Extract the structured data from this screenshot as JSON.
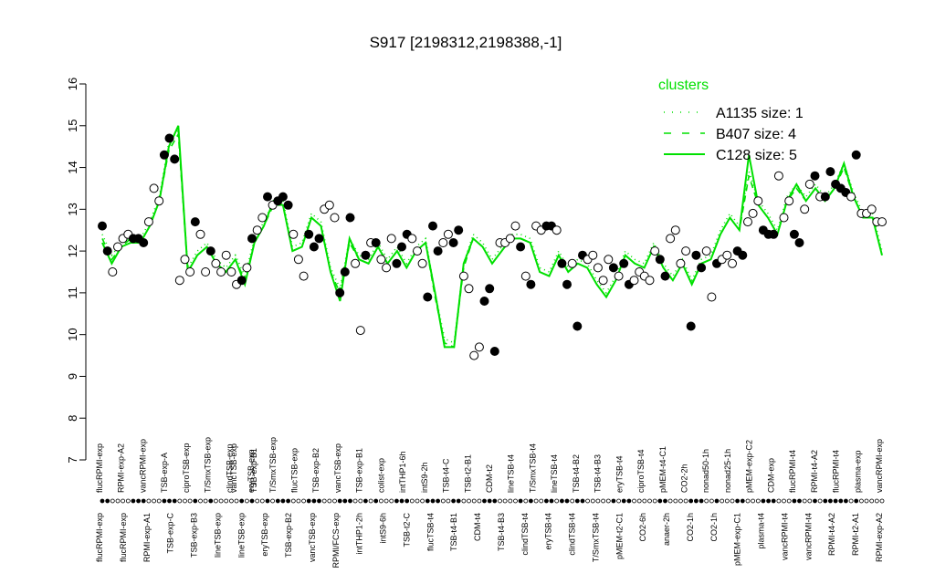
{
  "chart_data": {
    "type": "line",
    "title": "S917 [2198312,2198388,-1]",
    "xlabel": "",
    "ylabel": "",
    "ylim": [
      7,
      16
    ],
    "yticks": [
      "7",
      "8",
      "9",
      "10",
      "11",
      "12",
      "13",
      "14",
      "15",
      "16"
    ],
    "x_labels_top": [
      "flucRPMI-exp",
      "RPMI-exp-A2",
      "vancRPMI-exp",
      "TSB-exp-A",
      "ciproTSB-exp",
      "T/SmxTSB-exp",
      "clindTSB-exp",
      "eryTSB-exp",
      "T/SmxTSB-exp",
      "flucTSB-exp",
      "TSB-exp-B2",
      "vancTSB-exp",
      "TSB-exp-B1",
      "colist-exp",
      "intTHP1-6h",
      "intS9-2h",
      "TSB-t4-C",
      "TSB-t2-B1",
      "CDM-t2",
      "lineTSB-t4",
      "T/SmxTSB-t4",
      "lineTSB-t4",
      "TSB-t4-B2",
      "TSB-t4-B3",
      "eryTSB-t4",
      "ciproTSB-t4",
      "pMEM-t4-C1",
      "CO2-2h",
      "nonad50-1h",
      "nonad25-1h",
      "pMEM-exp-C2",
      "CDM-exp",
      "flucRPMI-t4",
      "RPMI-t4-A2",
      "flucRPMI-t4",
      "plasma-exp",
      "vancRPMI-exp"
    ],
    "x_labels_bottom": [
      "flucRPMI-exp",
      "flucRPMI-exp",
      "RPMI-exp-A1",
      "TSB-exp-C",
      "TSB-exp-B3",
      "lineTSB-exp",
      "lineTSB-exp",
      "eryTSB-exp",
      "TSB-exp-B2",
      "vancTSB-exp",
      "RPMI/FCS-exp",
      "intTHP1-2h",
      "intS9-6h",
      "TSB-t2-C",
      "flucTSB-t4",
      "TSB-t4-B1",
      "CDM-t4",
      "TSB-t4-B3",
      "clindTSB-t4",
      "eryTSB-t4",
      "clindTSB-t4",
      "T/SmxTSB-t4",
      "pMEM-t2-C1",
      "CO2-6h",
      "anaer-2h",
      "CO2-1h",
      "CO2-1h",
      "pMEM-exp-C1",
      "plasma-t4",
      "vancRPMI-t4",
      "vancRPMI-t4",
      "RPMI-t4-A2",
      "RPMI-t2-A1",
      "RPMI-exp-A2"
    ],
    "x_labels_mid": [
      "vancTSB-exp",
      "TSB-exp-B1"
    ],
    "series": [
      {
        "name": "A1135 size: 1",
        "style": "dotted",
        "color": "#00e000",
        "values": [
          12.4,
          11.9,
          12.2,
          12.3,
          12.3,
          12.7,
          13.3,
          14.6,
          14.9,
          11.6,
          12.0,
          12.2,
          11.8,
          11.6,
          11.9,
          11.4,
          12.3,
          12.7,
          13.2,
          13.2,
          12.1,
          12.2,
          12.9,
          12.7,
          11.6,
          11.1,
          12.3,
          11.9,
          11.8,
          12.2,
          11.8,
          12.1,
          11.7,
          12.1,
          12.3,
          11.0,
          9.9,
          9.8,
          11.7,
          12.4,
          12.2,
          11.8,
          12.1,
          12.4,
          12.4,
          12.3,
          11.6,
          11.5,
          12.0,
          11.6,
          11.8,
          11.7,
          11.3,
          11.0,
          11.4,
          12.0,
          11.8,
          11.7,
          12.2,
          11.7,
          11.4,
          11.8,
          11.3,
          11.8,
          11.9,
          12.5,
          12.9,
          12.6,
          13.9,
          13.2,
          12.9,
          12.5,
          13.3,
          13.6,
          13.3,
          13.6,
          13.3,
          13.6,
          14.1,
          13.4,
          12.9,
          12.9,
          12.0
        ]
      },
      {
        "name": "B407 size: 4",
        "style": "dashed",
        "color": "#00e000",
        "values": [
          12.3,
          11.8,
          12.1,
          12.3,
          12.2,
          12.6,
          13.2,
          14.4,
          14.8,
          11.5,
          11.9,
          12.1,
          11.7,
          11.5,
          11.8,
          11.3,
          12.2,
          12.6,
          13.1,
          13.1,
          12.0,
          12.1,
          12.8,
          12.6,
          11.5,
          11.0,
          12.2,
          11.8,
          11.7,
          12.1,
          11.7,
          12.0,
          11.6,
          12.0,
          12.2,
          10.9,
          9.8,
          9.7,
          11.6,
          12.3,
          12.1,
          11.7,
          12.0,
          12.3,
          12.3,
          12.2,
          11.5,
          11.4,
          11.9,
          11.5,
          11.7,
          11.6,
          11.2,
          10.9,
          11.3,
          11.9,
          11.7,
          11.6,
          12.1,
          11.6,
          11.3,
          11.7,
          11.2,
          11.7,
          11.8,
          12.4,
          12.8,
          12.5,
          13.8,
          13.1,
          12.8,
          12.4,
          13.2,
          13.5,
          13.2,
          13.5,
          13.2,
          13.5,
          14.0,
          13.3,
          12.8,
          12.8,
          11.9
        ]
      },
      {
        "name": "C128 size: 5",
        "style": "solid",
        "color": "#00e000",
        "values": [
          12.2,
          11.7,
          12.1,
          12.2,
          12.2,
          12.6,
          13.2,
          14.5,
          15.0,
          11.5,
          11.9,
          12.1,
          11.7,
          11.5,
          11.8,
          11.2,
          12.2,
          12.6,
          13.2,
          13.1,
          12.0,
          12.1,
          12.8,
          12.6,
          11.5,
          10.8,
          12.3,
          11.8,
          11.7,
          12.1,
          11.7,
          12.0,
          11.6,
          12.0,
          12.2,
          11.0,
          9.7,
          9.7,
          11.7,
          12.3,
          12.1,
          11.7,
          12.0,
          12.3,
          12.3,
          12.2,
          11.5,
          11.4,
          11.9,
          11.5,
          11.7,
          11.6,
          11.2,
          10.9,
          11.3,
          11.9,
          11.7,
          11.6,
          12.1,
          11.6,
          11.3,
          11.7,
          11.2,
          11.7,
          11.8,
          12.4,
          12.8,
          12.5,
          14.3,
          13.1,
          12.8,
          12.4,
          13.2,
          13.6,
          13.2,
          13.5,
          13.2,
          13.5,
          14.1,
          13.3,
          12.8,
          12.8,
          11.9
        ]
      }
    ],
    "points": [
      [
        12.6,
        "f"
      ],
      [
        12.0,
        "f"
      ],
      [
        11.5,
        "o"
      ],
      [
        12.1,
        "o"
      ],
      [
        12.3,
        "o"
      ],
      [
        12.4,
        "o"
      ],
      [
        12.3,
        "f"
      ],
      [
        12.3,
        "f"
      ],
      [
        12.2,
        "f"
      ],
      [
        12.7,
        "o"
      ],
      [
        13.5,
        "o"
      ],
      [
        13.2,
        "o"
      ],
      [
        14.3,
        "f"
      ],
      [
        14.7,
        "f"
      ],
      [
        14.2,
        "f"
      ],
      [
        11.3,
        "o"
      ],
      [
        11.8,
        "o"
      ],
      [
        11.5,
        "o"
      ],
      [
        12.7,
        "f"
      ],
      [
        12.4,
        "o"
      ],
      [
        11.5,
        "o"
      ],
      [
        12.0,
        "f"
      ],
      [
        11.7,
        "o"
      ],
      [
        11.5,
        "o"
      ],
      [
        11.9,
        "o"
      ],
      [
        11.5,
        "o"
      ],
      [
        11.2,
        "o"
      ],
      [
        11.3,
        "f"
      ],
      [
        11.6,
        "o"
      ],
      [
        12.3,
        "f"
      ],
      [
        12.5,
        "o"
      ],
      [
        12.8,
        "o"
      ],
      [
        13.3,
        "f"
      ],
      [
        13.1,
        "o"
      ],
      [
        13.2,
        "f"
      ],
      [
        13.3,
        "f"
      ],
      [
        13.1,
        "f"
      ],
      [
        12.4,
        "o"
      ],
      [
        11.8,
        "o"
      ],
      [
        11.4,
        "o"
      ],
      [
        12.4,
        "f"
      ],
      [
        12.1,
        "f"
      ],
      [
        12.3,
        "f"
      ],
      [
        13.0,
        "o"
      ],
      [
        13.1,
        "o"
      ],
      [
        12.8,
        "o"
      ],
      [
        11.0,
        "f"
      ],
      [
        11.5,
        "f"
      ],
      [
        12.8,
        "f"
      ],
      [
        11.7,
        "o"
      ],
      [
        10.1,
        "o"
      ],
      [
        11.9,
        "f"
      ],
      [
        12.2,
        "o"
      ],
      [
        12.2,
        "f"
      ],
      [
        11.8,
        "o"
      ],
      [
        11.6,
        "o"
      ],
      [
        12.3,
        "o"
      ],
      [
        11.7,
        "f"
      ],
      [
        12.1,
        "f"
      ],
      [
        12.4,
        "f"
      ],
      [
        12.3,
        "o"
      ],
      [
        12.0,
        "o"
      ],
      [
        11.7,
        "o"
      ],
      [
        10.9,
        "f"
      ],
      [
        12.6,
        "f"
      ],
      [
        12.0,
        "f"
      ],
      [
        12.2,
        "o"
      ],
      [
        12.4,
        "o"
      ],
      [
        12.2,
        "f"
      ],
      [
        12.5,
        "f"
      ],
      [
        11.4,
        "o"
      ],
      [
        11.1,
        "o"
      ],
      [
        9.5,
        "o"
      ],
      [
        9.7,
        "o"
      ],
      [
        10.8,
        "f"
      ],
      [
        11.1,
        "f"
      ],
      [
        9.6,
        "f"
      ],
      [
        12.2,
        "o"
      ],
      [
        12.2,
        "o"
      ],
      [
        12.3,
        "o"
      ],
      [
        12.6,
        "o"
      ],
      [
        12.1,
        "f"
      ],
      [
        11.4,
        "o"
      ],
      [
        11.2,
        "f"
      ],
      [
        12.6,
        "o"
      ],
      [
        12.5,
        "o"
      ],
      [
        12.6,
        "f"
      ],
      [
        12.6,
        "f"
      ],
      [
        12.5,
        "o"
      ],
      [
        11.7,
        "f"
      ],
      [
        11.2,
        "f"
      ],
      [
        11.7,
        "o"
      ],
      [
        10.2,
        "f"
      ],
      [
        11.9,
        "f"
      ],
      [
        11.8,
        "o"
      ],
      [
        11.9,
        "o"
      ],
      [
        11.6,
        "o"
      ],
      [
        11.3,
        "o"
      ],
      [
        11.8,
        "o"
      ],
      [
        11.6,
        "f"
      ],
      [
        11.4,
        "o"
      ],
      [
        11.7,
        "f"
      ],
      [
        11.2,
        "f"
      ],
      [
        11.3,
        "o"
      ],
      [
        11.5,
        "o"
      ],
      [
        11.4,
        "o"
      ],
      [
        11.3,
        "o"
      ],
      [
        12.0,
        "o"
      ],
      [
        11.8,
        "f"
      ],
      [
        11.4,
        "f"
      ],
      [
        12.3,
        "o"
      ],
      [
        12.5,
        "o"
      ],
      [
        11.7,
        "o"
      ],
      [
        12.0,
        "o"
      ],
      [
        10.2,
        "f"
      ],
      [
        11.9,
        "f"
      ],
      [
        11.6,
        "f"
      ],
      [
        12.0,
        "o"
      ],
      [
        10.9,
        "o"
      ],
      [
        11.7,
        "f"
      ],
      [
        11.8,
        "o"
      ],
      [
        11.9,
        "o"
      ],
      [
        11.7,
        "o"
      ],
      [
        12.0,
        "f"
      ],
      [
        11.9,
        "f"
      ],
      [
        12.7,
        "o"
      ],
      [
        12.9,
        "o"
      ],
      [
        13.2,
        "o"
      ],
      [
        12.5,
        "f"
      ],
      [
        12.4,
        "f"
      ],
      [
        12.4,
        "f"
      ],
      [
        13.8,
        "o"
      ],
      [
        12.8,
        "o"
      ],
      [
        13.2,
        "o"
      ],
      [
        12.4,
        "f"
      ],
      [
        12.2,
        "f"
      ],
      [
        13.0,
        "o"
      ],
      [
        13.6,
        "o"
      ],
      [
        13.8,
        "f"
      ],
      [
        13.3,
        "o"
      ],
      [
        13.3,
        "f"
      ],
      [
        13.9,
        "f"
      ],
      [
        13.6,
        "f"
      ],
      [
        13.5,
        "f"
      ],
      [
        13.4,
        "f"
      ],
      [
        13.3,
        "o"
      ],
      [
        14.3,
        "f"
      ],
      [
        12.9,
        "o"
      ],
      [
        12.9,
        "o"
      ],
      [
        13.0,
        "o"
      ],
      [
        12.7,
        "o"
      ],
      [
        12.7,
        "o"
      ]
    ],
    "legend": {
      "title": "clusters",
      "position": "top-right"
    },
    "grid": false
  }
}
